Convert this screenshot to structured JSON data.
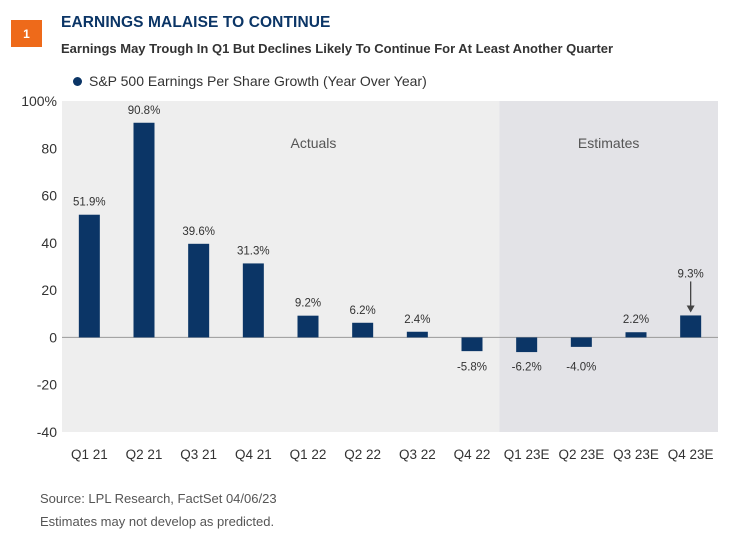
{
  "header": {
    "badge": "1",
    "title": "EARNINGS MALAISE TO CONTINUE",
    "subtitle": "Earnings May Trough In Q1 But Declines Likely To Continue For At Least Another Quarter"
  },
  "footer": {
    "source": "Source: LPL Research, FactSet  04/06/23",
    "note": "Estimates may not develop as predicted."
  },
  "colors": {
    "bar": "#0b3566",
    "actuals_bg": "#eeeeee",
    "estimates_bg": "#e3e3e7",
    "badge": "#ee6a1a"
  },
  "chart_data": {
    "type": "bar",
    "series": [
      {
        "name": "S&P 500 Earnings Per Share Growth (Year Over Year)",
        "values": [
          51.9,
          90.8,
          39.6,
          31.3,
          9.2,
          6.2,
          2.4,
          -5.8,
          -6.2,
          -4.0,
          2.2,
          9.3
        ]
      }
    ],
    "categories": [
      "Q1 21",
      "Q2 21",
      "Q3 21",
      "Q4 21",
      "Q1 22",
      "Q2 22",
      "Q3 22",
      "Q4 22",
      "Q1 23E",
      "Q2 23E",
      "Q3 23E",
      "Q4 23E"
    ],
    "data_labels": [
      "51.9%",
      "90.8%",
      "39.6%",
      "31.3%",
      "9.2%",
      "6.2%",
      "2.4%",
      "-5.8%",
      "-6.2%",
      "-4.0%",
      "2.2%",
      "9.3%"
    ],
    "ylim": [
      -40,
      100
    ],
    "yticks": [
      -40,
      -20,
      0,
      20,
      40,
      60,
      80,
      100
    ],
    "ytick_labels": [
      "-40",
      "-20",
      "0",
      "20",
      "40",
      "60",
      "80",
      "100%"
    ],
    "regions": [
      {
        "label": "Actuals",
        "from": 0,
        "to": 7
      },
      {
        "label": "Estimates",
        "from": 8,
        "to": 11
      }
    ],
    "annotation": {
      "index": 11,
      "type": "arrow"
    },
    "legend_position": "top-left",
    "grid": false
  }
}
